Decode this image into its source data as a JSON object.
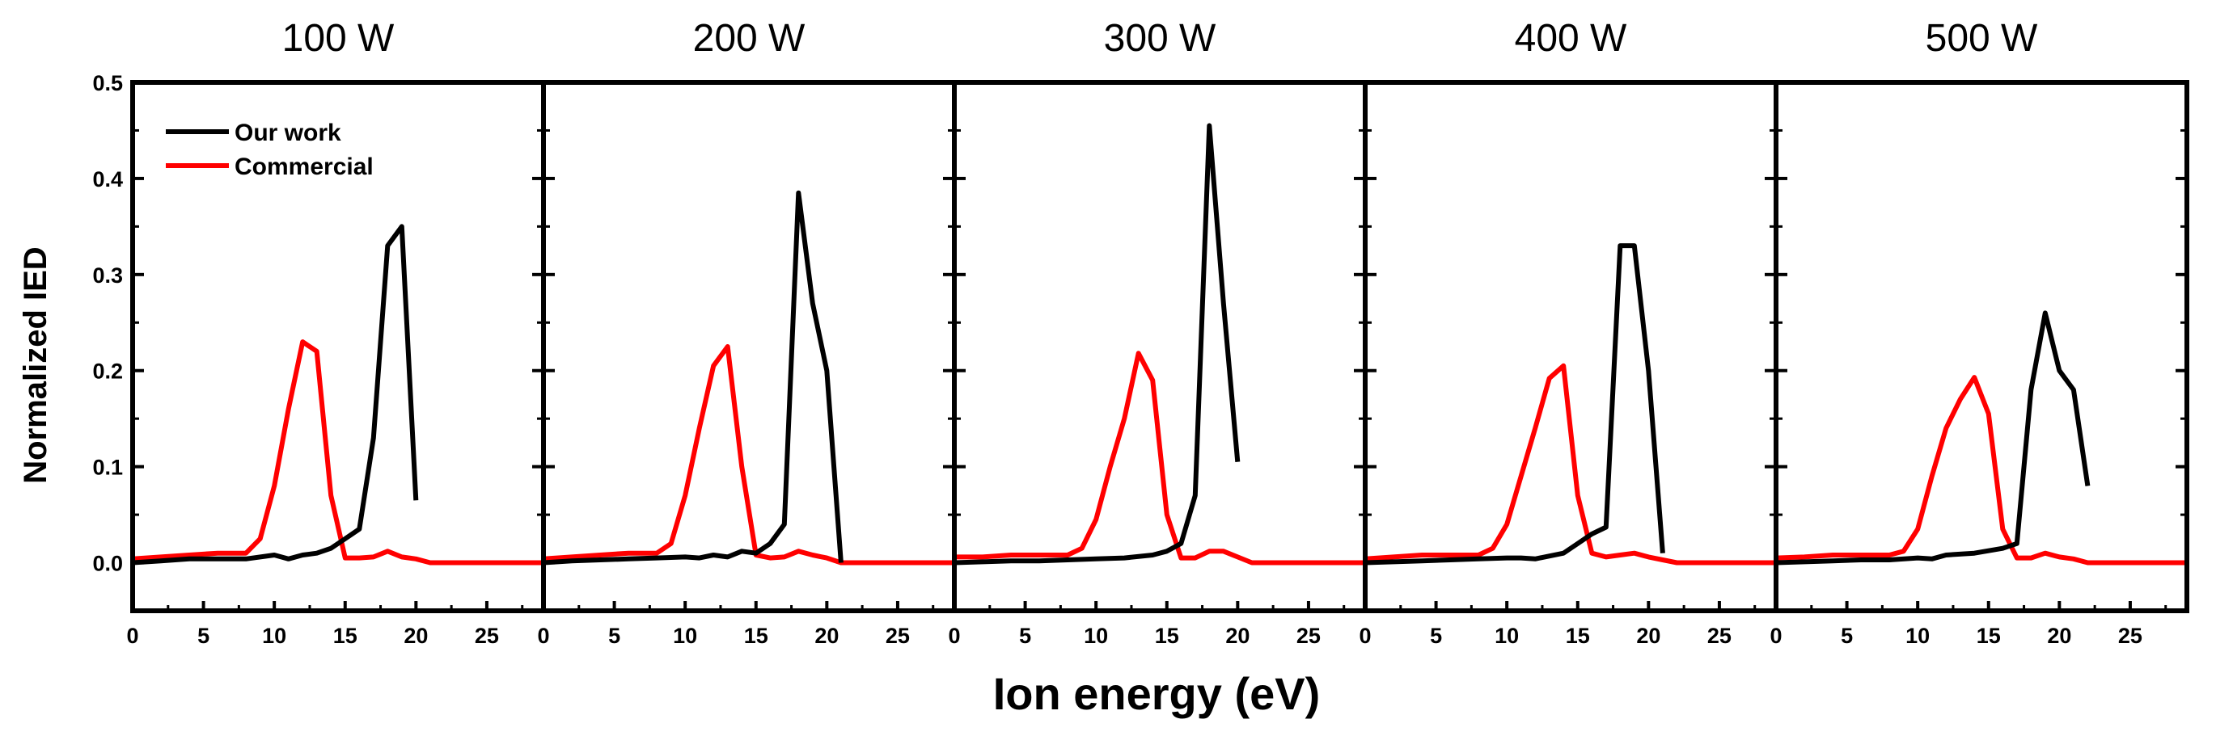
{
  "chart_data": {
    "type": "line",
    "xlabel": "Ion energy (eV)",
    "ylabel": "Normalized IED",
    "xlim": [
      0,
      29
    ],
    "ylim": [
      -0.05,
      0.5
    ],
    "x_ticks": [
      "0",
      "5",
      "10",
      "15",
      "20",
      "25"
    ],
    "y_ticks": [
      "0.0",
      "0.1",
      "0.2",
      "0.3",
      "0.4",
      "0.5"
    ],
    "y_tick_values": [
      0,
      0.1,
      0.2,
      0.3,
      0.4,
      0.5
    ],
    "x_tick_values": [
      0,
      5,
      10,
      15,
      20,
      25
    ],
    "legend": [
      {
        "name": "Our work",
        "color": "#000000"
      },
      {
        "name": "Commercial",
        "color": "#ff0000"
      }
    ],
    "colors": {
      "our_work": "#000000",
      "commercial": "#ff0000"
    },
    "panels": [
      {
        "title": "100 W",
        "series": [
          {
            "name": "Our work",
            "x": [
              0,
              2,
              4,
              6,
              8,
              10,
              11,
              12,
              13,
              14,
              15,
              16,
              17,
              18,
              19,
              20
            ],
            "y": [
              0,
              0.002,
              0.004,
              0.004,
              0.004,
              0.008,
              0.004,
              0.008,
              0.01,
              0.015,
              0.025,
              0.035,
              0.13,
              0.33,
              0.35,
              0.065
            ]
          },
          {
            "name": "Commercial",
            "x": [
              0,
              2,
              4,
              6,
              8,
              9,
              10,
              11,
              12,
              13,
              14,
              15,
              16,
              17,
              18,
              19,
              20,
              21,
              22,
              25,
              29
            ],
            "y": [
              0.004,
              0.006,
              0.008,
              0.01,
              0.01,
              0.025,
              0.08,
              0.16,
              0.23,
              0.22,
              0.07,
              0.005,
              0.005,
              0.006,
              0.012,
              0.006,
              0.004,
              0,
              0,
              0,
              0
            ]
          }
        ]
      },
      {
        "title": "200 W",
        "series": [
          {
            "name": "Our work",
            "x": [
              0,
              2,
              4,
              6,
              8,
              10,
              11,
              12,
              13,
              14,
              15,
              16,
              17,
              18,
              19,
              20,
              21
            ],
            "y": [
              0,
              0.002,
              0.003,
              0.004,
              0.005,
              0.006,
              0.005,
              0.008,
              0.006,
              0.012,
              0.01,
              0.02,
              0.04,
              0.385,
              0.27,
              0.2,
              0
            ]
          },
          {
            "name": "Commercial",
            "x": [
              0,
              2,
              4,
              6,
              8,
              9,
              10,
              11,
              12,
              13,
              14,
              15,
              16,
              17,
              18,
              19,
              20,
              21,
              22,
              25,
              29
            ],
            "y": [
              0.004,
              0.006,
              0.008,
              0.01,
              0.01,
              0.02,
              0.07,
              0.14,
              0.205,
              0.225,
              0.1,
              0.008,
              0.005,
              0.006,
              0.012,
              0.008,
              0.005,
              0,
              0,
              0,
              0
            ]
          }
        ]
      },
      {
        "title": "300 W",
        "series": [
          {
            "name": "Our work",
            "x": [
              0,
              2,
              4,
              6,
              8,
              10,
              12,
              14,
              15,
              16,
              17,
              18,
              19,
              20
            ],
            "y": [
              0,
              0.001,
              0.002,
              0.002,
              0.003,
              0.004,
              0.005,
              0.008,
              0.012,
              0.02,
              0.07,
              0.455,
              0.27,
              0.105
            ]
          },
          {
            "name": "Commercial",
            "x": [
              0,
              2,
              4,
              6,
              8,
              9,
              10,
              11,
              12,
              13,
              14,
              15,
              16,
              17,
              18,
              19,
              20,
              21,
              22,
              25,
              29
            ],
            "y": [
              0.006,
              0.006,
              0.008,
              0.008,
              0.008,
              0.015,
              0.045,
              0.1,
              0.15,
              0.218,
              0.19,
              0.05,
              0.005,
              0.005,
              0.012,
              0.012,
              0.006,
              0,
              0,
              0,
              0
            ]
          }
        ]
      },
      {
        "title": "400 W",
        "series": [
          {
            "name": "Our work",
            "x": [
              0,
              2,
              4,
              6,
              8,
              10,
              11,
              12,
              14,
              15,
              16,
              17,
              18,
              19,
              20,
              21
            ],
            "y": [
              0,
              0.001,
              0.002,
              0.003,
              0.004,
              0.005,
              0.005,
              0.004,
              0.01,
              0.02,
              0.03,
              0.037,
              0.33,
              0.33,
              0.2,
              0.01
            ]
          },
          {
            "name": "Commercial",
            "x": [
              0,
              2,
              4,
              6,
              8,
              9,
              10,
              11,
              12,
              13,
              14,
              15,
              16,
              17,
              18,
              19,
              20,
              21,
              22,
              25,
              29
            ],
            "y": [
              0.004,
              0.006,
              0.008,
              0.008,
              0.008,
              0.015,
              0.04,
              0.09,
              0.14,
              0.192,
              0.205,
              0.07,
              0.01,
              0.006,
              0.008,
              0.01,
              0.006,
              0.003,
              0,
              0,
              0
            ]
          }
        ]
      },
      {
        "title": "500 W",
        "series": [
          {
            "name": "Our work",
            "x": [
              0,
              2,
              4,
              6,
              8,
              10,
              11,
              12,
              14,
              16,
              17,
              18,
              19,
              20,
              21,
              22
            ],
            "y": [
              0,
              0.001,
              0.002,
              0.003,
              0.003,
              0.005,
              0.004,
              0.008,
              0.01,
              0.015,
              0.02,
              0.18,
              0.26,
              0.2,
              0.18,
              0.08
            ]
          },
          {
            "name": "Commercial",
            "x": [
              0,
              2,
              4,
              6,
              8,
              9,
              10,
              11,
              12,
              13,
              14,
              15,
              16,
              17,
              18,
              19,
              20,
              21,
              22,
              25,
              29
            ],
            "y": [
              0.005,
              0.006,
              0.008,
              0.008,
              0.008,
              0.012,
              0.035,
              0.09,
              0.14,
              0.17,
              0.193,
              0.155,
              0.035,
              0.005,
              0.005,
              0.01,
              0.006,
              0.004,
              0,
              0,
              0
            ]
          }
        ]
      }
    ]
  }
}
